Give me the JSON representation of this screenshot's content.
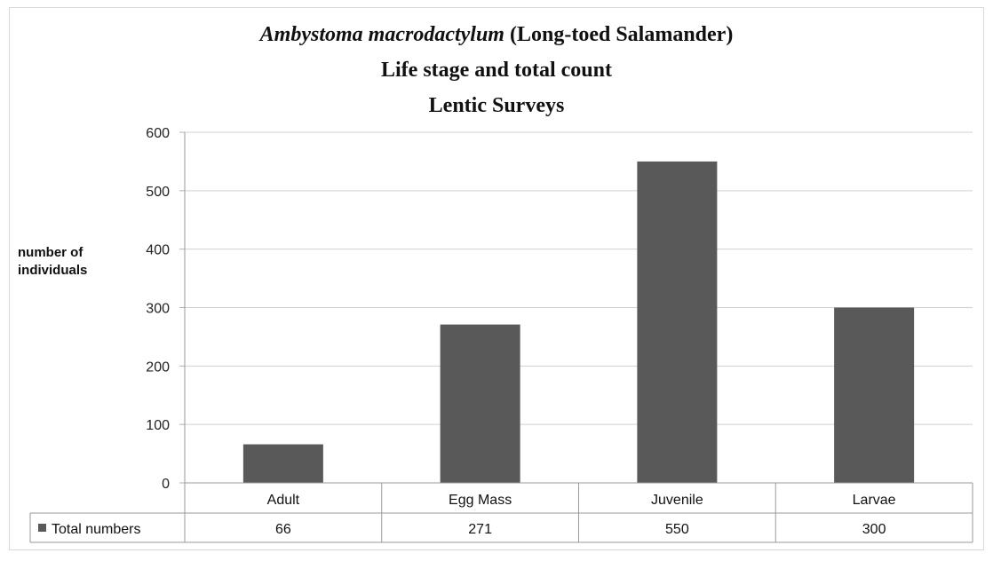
{
  "chart_data": {
    "type": "bar",
    "title": {
      "italic": "Ambystoma macrodactylum",
      "rest": " (Long-toed Salamander)",
      "line2": "Life stage and total count",
      "line3": "Lentic Surveys"
    },
    "ylabel": "number of individuals",
    "xlabel": "",
    "categories": [
      "Adult",
      "Egg Mass",
      "Juvenile",
      "Larvae"
    ],
    "series": [
      {
        "name": "Total numbers",
        "values": [
          66,
          271,
          550,
          300
        ],
        "color": "#595959"
      }
    ],
    "ylim": [
      0,
      600
    ],
    "yticks": [
      0,
      100,
      200,
      300,
      400,
      500,
      600
    ],
    "grid": true,
    "legend": "data-table"
  }
}
